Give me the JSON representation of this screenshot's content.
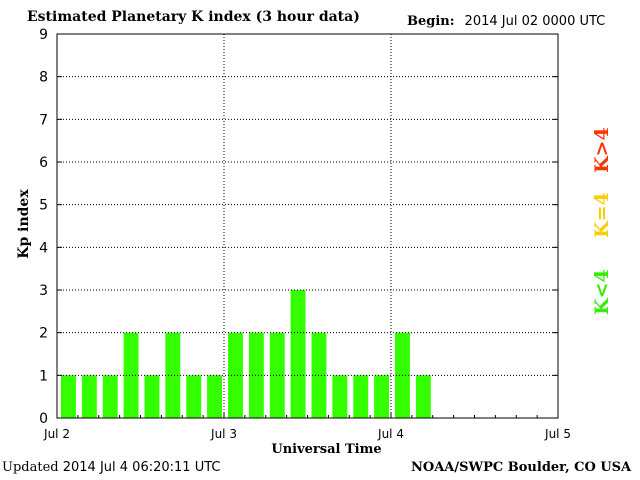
{
  "header": {
    "title": "Estimated Planetary K index (3 hour data)",
    "begin_label": "Begin:",
    "begin_value": "2014 Jul 02 0000 UTC"
  },
  "footer": {
    "updated_label": "Updated",
    "updated_value": "2014 Jul  4 06:20:11 UTC",
    "credit": "NOAA/SWPC Boulder, CO USA"
  },
  "legend": {
    "items": [
      {
        "label": "K>4",
        "color": "#ff3300"
      },
      {
        "label": "K=4",
        "color": "#ffcc00"
      },
      {
        "label": "K<4",
        "color": "#33ee00"
      }
    ]
  },
  "chart_data": {
    "type": "bar",
    "ylabel": "Kp index",
    "xlabel": "Universal Time",
    "ylim": [
      0,
      9
    ],
    "yticks": [
      0,
      1,
      2,
      3,
      4,
      5,
      6,
      7,
      8,
      9
    ],
    "xticks": [
      "Jul 2",
      "Jul 3",
      "Jul 4",
      "Jul 5"
    ],
    "bar_color": "#33ff00",
    "grid": true,
    "series": [
      {
        "values": [
          1,
          1,
          1,
          2,
          1,
          2,
          1,
          1,
          2,
          2,
          2,
          3,
          2,
          1,
          1,
          1,
          2,
          1
        ]
      }
    ],
    "bins_total": 24
  }
}
